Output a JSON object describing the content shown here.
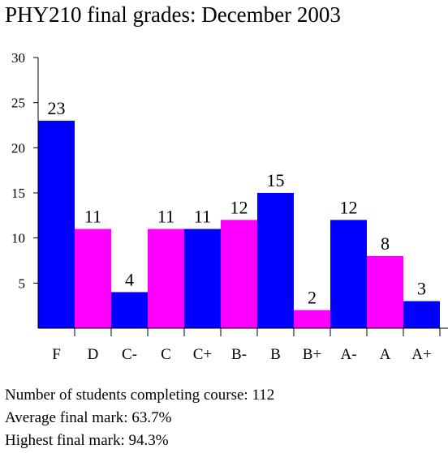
{
  "chart_data": {
    "type": "bar",
    "title": "PHY210 final grades: December 2003",
    "xlabel": "",
    "ylabel": "",
    "categories": [
      "F",
      "D",
      "C-",
      "C",
      "C+",
      "B-",
      "B",
      "B+",
      "A-",
      "A",
      "A+"
    ],
    "values": [
      23,
      11,
      4,
      11,
      11,
      12,
      15,
      2,
      12,
      8,
      3
    ],
    "bar_colors": [
      "#0000ff",
      "#ff00ff",
      "#0000ff",
      "#ff00ff",
      "#0000ff",
      "#ff00ff",
      "#0000ff",
      "#ff00ff",
      "#0000ff",
      "#ff00ff",
      "#0000ff"
    ],
    "ylim": [
      0,
      30
    ],
    "yticks": [
      5,
      10,
      15,
      20,
      25,
      30
    ],
    "grid": false,
    "legend": "none",
    "data_labels": true
  },
  "footer": {
    "line1": "Number of students completing course: 112",
    "line2": "Average final mark: 63.7%",
    "line3": "Highest final mark: 94.3%"
  }
}
